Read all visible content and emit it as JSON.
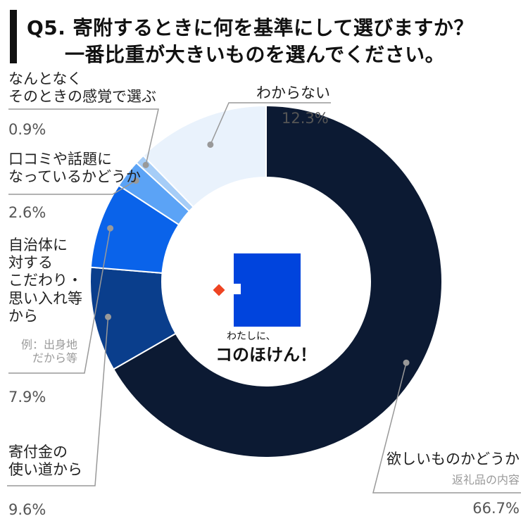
{
  "title": {
    "line1": "Q5. 寄附するときに何を基準にして選びますか？",
    "line2": "一番比重が大きいものを選んでください。"
  },
  "center_logo": {
    "small_text": "わたしに、",
    "large_text": "コのほけん！",
    "accent_color": "#0044dd",
    "mark_color": "#ee4422"
  },
  "chart_data": {
    "type": "pie",
    "variant": "donut",
    "unit": "%",
    "slices": [
      {
        "key": "yokushii",
        "label": "欲しいものかどうか",
        "sub": "返礼品の内容",
        "value": 66.7,
        "color": "#0c1a33"
      },
      {
        "key": "kifukin",
        "label": "寄付金の\n使い道から",
        "sub": "",
        "value": 9.6,
        "color": "#0a3e8c"
      },
      {
        "key": "jichitai",
        "label": "自治体に\n対する\nこだわり・\n思い入れ等\nから",
        "sub": "例：出身地\nだから等",
        "value": 7.9,
        "color": "#0a63ea"
      },
      {
        "key": "kuchikomi",
        "label": "口コミや話題に\nなっているかどうか",
        "sub": "",
        "value": 2.6,
        "color": "#5ba3f6"
      },
      {
        "key": "nantonaku",
        "label": "なんとなく\nそのときの感覚で選ぶ",
        "sub": "",
        "value": 0.9,
        "color": "#a6cdf7"
      },
      {
        "key": "wakaranai",
        "label": "わからない",
        "sub": "",
        "value": 12.3,
        "color": "#e9f2fc"
      }
    ],
    "percent_labels": [
      "66.7%",
      "9.6%",
      "7.9%",
      "2.6%",
      "0.9%",
      "12.3%"
    ],
    "start_angle_deg": 0,
    "direction": "clockwise",
    "legend": "none"
  }
}
